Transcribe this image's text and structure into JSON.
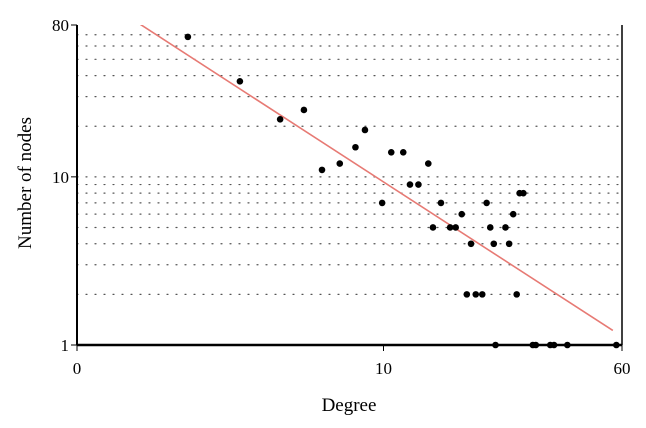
{
  "chart_data": {
    "type": "scatter",
    "title": "",
    "xlabel": "Degree",
    "ylabel": "Number of nodes",
    "xscale": "log",
    "yscale": "log",
    "xlim": [
      1,
      60
    ],
    "ylim": [
      1,
      80
    ],
    "x_ticks": [
      {
        "label": "0",
        "value": 1
      },
      {
        "label": "10",
        "value": 10
      },
      {
        "label": "60",
        "value": 60
      }
    ],
    "y_ticks": [
      {
        "label": "1",
        "value": 1
      },
      {
        "label": "10",
        "value": 10
      },
      {
        "label": "80",
        "value": 80
      }
    ],
    "grid": "dotted horizontal lines at 1–9, 10–80 (log-spaced)",
    "colors": {
      "points": "#000000",
      "fit_line": "#e77a74",
      "grid": "#555555"
    },
    "points": [
      {
        "x": 2.3,
        "y": 68
      },
      {
        "x": 3.4,
        "y": 37
      },
      {
        "x": 4.6,
        "y": 22
      },
      {
        "x": 5.5,
        "y": 25
      },
      {
        "x": 6.3,
        "y": 11
      },
      {
        "x": 7.2,
        "y": 12
      },
      {
        "x": 8.1,
        "y": 15
      },
      {
        "x": 8.7,
        "y": 19
      },
      {
        "x": 9.9,
        "y": 7
      },
      {
        "x": 10.6,
        "y": 14
      },
      {
        "x": 11.6,
        "y": 14
      },
      {
        "x": 12.2,
        "y": 9
      },
      {
        "x": 13.0,
        "y": 9
      },
      {
        "x": 14.0,
        "y": 12
      },
      {
        "x": 14.5,
        "y": 5
      },
      {
        "x": 15.4,
        "y": 7
      },
      {
        "x": 16.5,
        "y": 5
      },
      {
        "x": 17.2,
        "y": 5
      },
      {
        "x": 18.0,
        "y": 6
      },
      {
        "x": 18.7,
        "y": 2
      },
      {
        "x": 19.3,
        "y": 4
      },
      {
        "x": 20.0,
        "y": 2
      },
      {
        "x": 21.0,
        "y": 2
      },
      {
        "x": 21.7,
        "y": 7
      },
      {
        "x": 22.3,
        "y": 5
      },
      {
        "x": 22.9,
        "y": 4
      },
      {
        "x": 23.2,
        "y": 1
      },
      {
        "x": 25.0,
        "y": 5
      },
      {
        "x": 25.7,
        "y": 4
      },
      {
        "x": 26.5,
        "y": 6
      },
      {
        "x": 27.2,
        "y": 2
      },
      {
        "x": 27.8,
        "y": 8
      },
      {
        "x": 28.6,
        "y": 8
      },
      {
        "x": 30.7,
        "y": 1
      },
      {
        "x": 31.4,
        "y": 1
      },
      {
        "x": 35.0,
        "y": 1
      },
      {
        "x": 36.0,
        "y": 1
      },
      {
        "x": 39.8,
        "y": 1
      },
      {
        "x": 57.5,
        "y": 1
      }
    ],
    "fit_line": {
      "x": [
        1.54,
        56.0
      ],
      "y": [
        85,
        1.22
      ]
    }
  }
}
